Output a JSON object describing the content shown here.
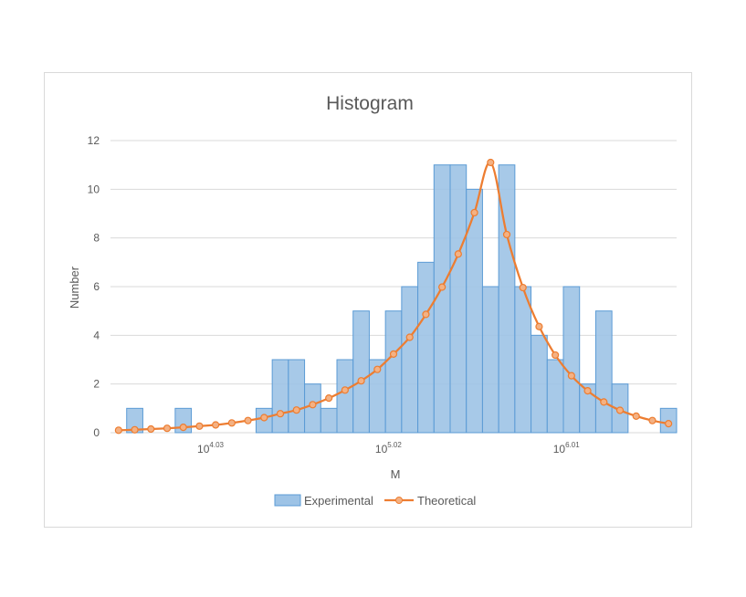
{
  "chart_data": {
    "type": "bar",
    "title": "Histogram",
    "xlabel": "M",
    "ylabel": "Number",
    "ylim": [
      0,
      12
    ],
    "yticks": [
      "0",
      "2",
      "4",
      "6",
      "8",
      "10",
      "12"
    ],
    "xscale": "log10",
    "xlim": [
      3.4736,
      6.6236
    ],
    "xticks": [
      {
        "base": "10",
        "exp": "4.03",
        "value": 4.03
      },
      {
        "base": "10",
        "exp": "5.02",
        "value": 5.02
      },
      {
        "base": "10",
        "exp": "6.01",
        "value": 6.01
      }
    ],
    "grid": true,
    "legend_position": "bottom",
    "bin_width": 0.09,
    "series": [
      {
        "name": "Experimental",
        "type": "bar",
        "color": "#9dc3e6",
        "edge": "#5b9bd5",
        "x": [
          3.5186,
          3.6086,
          3.6986,
          3.7886,
          3.8786,
          3.9686,
          4.0586,
          4.1486,
          4.2386,
          4.3286,
          4.4186,
          4.5086,
          4.5986,
          4.6886,
          4.7786,
          4.8686,
          4.9586,
          5.0486,
          5.1386,
          5.2286,
          5.3186,
          5.4086,
          5.4986,
          5.5886,
          5.6786,
          5.7686,
          5.8586,
          5.9486,
          6.0386,
          6.1286,
          6.2186,
          6.3086,
          6.3986,
          6.4886,
          6.5786
        ],
        "values": [
          0,
          1,
          0,
          0,
          1,
          0,
          0,
          0,
          0,
          1,
          3,
          3,
          2,
          1,
          3,
          5,
          3,
          5,
          6,
          7,
          11,
          11,
          10,
          6,
          11,
          6,
          4,
          3,
          6,
          2,
          5,
          2,
          0,
          0,
          1
        ]
      },
      {
        "name": "Theoretical",
        "type": "line",
        "color": "#ed7d31",
        "x": [
          3.5186,
          3.6086,
          3.6986,
          3.7886,
          3.8786,
          3.9686,
          4.0586,
          4.1486,
          4.2386,
          4.3286,
          4.4186,
          4.5086,
          4.5986,
          4.6886,
          4.7786,
          4.8686,
          4.9586,
          5.0486,
          5.1386,
          5.2286,
          5.3186,
          5.4086,
          5.4986,
          5.5886,
          5.6786,
          5.7686,
          5.8586,
          5.9486,
          6.0386,
          6.1286,
          6.2186,
          6.3086,
          6.3986,
          6.4886,
          6.5786
        ],
        "values": [
          0.1,
          0.12,
          0.15,
          0.18,
          0.22,
          0.27,
          0.32,
          0.4,
          0.5,
          0.62,
          0.78,
          0.93,
          1.15,
          1.42,
          1.75,
          2.13,
          2.6,
          3.23,
          3.92,
          4.86,
          5.98,
          7.34,
          9.04,
          11.1,
          8.14,
          5.96,
          4.36,
          3.19,
          2.34,
          1.72,
          1.26,
          0.92,
          0.68,
          0.5,
          0.37
        ]
      }
    ]
  }
}
